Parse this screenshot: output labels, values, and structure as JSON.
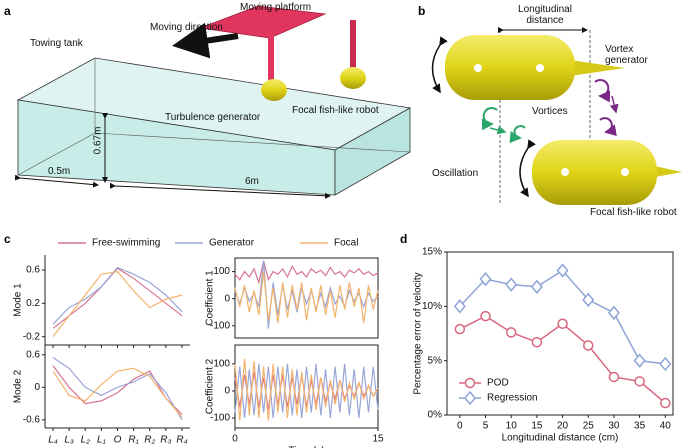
{
  "panels": {
    "a": {
      "label": "a",
      "platform": "Moving platform",
      "direction": "Moving direction",
      "tank": "Towing tank",
      "generator": "Turbulence generator",
      "robot": "Focal fish-like robot",
      "height": "0.67m",
      "width": "0.5m",
      "length": "6m"
    },
    "b": {
      "label": "b",
      "distance": "Longitudinal distance",
      "generator": "Vortex generator",
      "vortices": "Vortices",
      "oscillation": "Oscillation",
      "robot": "Focal fish-like robot"
    },
    "c": {
      "label": "c"
    },
    "d": {
      "label": "d"
    }
  },
  "chart_data": [
    {
      "type": "line",
      "ylabel": "Mode 1",
      "categories": [
        null,
        null,
        null,
        null,
        null,
        null,
        null,
        null,
        null
      ],
      "ylim": [
        -0.3,
        0.78
      ],
      "yticks": [
        -0.2,
        0.2,
        0.6
      ],
      "series": [
        {
          "name": "Free-swimming",
          "color": "#d9758f",
          "values": [
            -0.1,
            0.05,
            0.2,
            0.4,
            0.62,
            0.5,
            0.35,
            0.2,
            0.05
          ]
        },
        {
          "name": "Generator",
          "color": "#9aa6d8",
          "values": [
            -0.05,
            0.15,
            0.25,
            0.4,
            0.63,
            0.55,
            0.45,
            0.3,
            0.1
          ]
        },
        {
          "name": "Focal",
          "color": "#f4b36b",
          "values": [
            -0.2,
            0.05,
            0.3,
            0.55,
            0.58,
            0.35,
            0.15,
            0.25,
            0.3
          ]
        }
      ]
    },
    {
      "type": "line",
      "ylabel": "Coefficient 1",
      "x": [
        0,
        0.5,
        1,
        1.5,
        2,
        2.5,
        3,
        3.5,
        4,
        4.5,
        5,
        5.5,
        6,
        6.5,
        7,
        7.5,
        8,
        8.5,
        9,
        9.5,
        10,
        10.5,
        11,
        11.5,
        12,
        12.5,
        13,
        13.5,
        14,
        14.5,
        15
      ],
      "xlim": [
        0,
        15
      ],
      "ylim": [
        -145,
        150
      ],
      "yticks": [
        -100,
        0,
        100
      ],
      "series": [
        {
          "name": "Free-swimming",
          "color": "#d9758f",
          "values": [
            90,
            70,
            100,
            80,
            110,
            60,
            140,
            70,
            100,
            90,
            110,
            80,
            120,
            90,
            100,
            80,
            110,
            95,
            105,
            85,
            115,
            90,
            100,
            80,
            105,
            95,
            110,
            90,
            100,
            85,
            95
          ]
        },
        {
          "name": "Generator",
          "color": "#9aa6d8",
          "values": [
            30,
            -20,
            40,
            -10,
            20,
            -30,
            140,
            -110,
            60,
            -60,
            50,
            -40,
            30,
            -50,
            40,
            -20,
            30,
            -40,
            20,
            -30,
            40,
            -20,
            10,
            -30,
            30,
            -10,
            20,
            -30,
            20,
            -10,
            10
          ]
        },
        {
          "name": "Focal",
          "color": "#f4b36b",
          "values": [
            40,
            -30,
            50,
            -50,
            30,
            -60,
            100,
            -80,
            40,
            -90,
            60,
            -70,
            50,
            -40,
            60,
            -80,
            40,
            -50,
            50,
            -60,
            30,
            -70,
            50,
            -40,
            60,
            -30,
            40,
            -90,
            50,
            -40,
            30
          ]
        }
      ]
    },
    {
      "type": "line",
      "ylabel": "Mode 2",
      "categories": [
        "L₄",
        "L₃",
        "L₂",
        "L₁",
        "O",
        "R₁",
        "R₂",
        "R₃",
        "R₄"
      ],
      "ylim": [
        -0.75,
        0.78
      ],
      "yticks": [
        -0.6,
        0,
        0.6
      ],
      "series": [
        {
          "name": "Free-swimming",
          "color": "#d9758f",
          "values": [
            0.4,
            0.0,
            -0.3,
            -0.25,
            -0.1,
            0.15,
            0.3,
            -0.2,
            -0.5
          ]
        },
        {
          "name": "Generator",
          "color": "#9aa6d8",
          "values": [
            0.55,
            0.35,
            0.0,
            -0.15,
            0.0,
            0.1,
            0.25,
            -0.1,
            -0.6
          ]
        },
        {
          "name": "Focal",
          "color": "#f4b36b",
          "values": [
            0.3,
            -0.15,
            -0.25,
            0.05,
            0.3,
            0.35,
            0.2,
            -0.2,
            -0.55
          ]
        }
      ]
    },
    {
      "type": "line",
      "ylabel": "Coefficient 2",
      "xlabel": "Time (s)",
      "x": [
        0,
        0.5,
        1,
        1.5,
        2,
        2.5,
        3,
        3.5,
        4,
        4.5,
        5,
        5.5,
        6,
        6.5,
        7,
        7.5,
        8,
        8.5,
        9,
        9.5,
        10,
        10.5,
        11,
        11.5,
        12,
        12.5,
        13,
        13.5,
        14,
        14.5,
        15
      ],
      "xlim": [
        0,
        15
      ],
      "xticks": [
        0,
        15
      ],
      "ylim": [
        -137,
        170
      ],
      "yticks": [
        -100,
        0,
        100
      ],
      "series": [
        {
          "name": "Free-swimming",
          "color": "#d9758f",
          "values": [
            50,
            -60,
            60,
            -50,
            70,
            -60,
            50,
            -70,
            60,
            -50,
            60,
            -60,
            50,
            -50,
            60,
            -60,
            40,
            -50,
            50,
            -40,
            30,
            -30,
            40,
            -30,
            20,
            -20,
            30,
            -20,
            20,
            -20,
            10
          ]
        },
        {
          "name": "Generator",
          "color": "#9aa6d8",
          "values": [
            -80,
            90,
            -100,
            80,
            -90,
            100,
            -80,
            90,
            -100,
            90,
            -80,
            100,
            -90,
            80,
            -100,
            90,
            -80,
            100,
            -90,
            80,
            -100,
            90,
            -80,
            100,
            -90,
            80,
            -100,
            90,
            -80,
            90,
            -70
          ]
        },
        {
          "name": "Focal",
          "color": "#f4b36b",
          "values": [
            100,
            -110,
            120,
            -90,
            110,
            -100,
            90,
            -110,
            100,
            -80,
            90,
            -100,
            80,
            -90,
            70,
            -80,
            60,
            -70,
            50,
            -60,
            40,
            -50,
            40,
            -40,
            30,
            -30,
            30,
            -30,
            20,
            -20,
            10
          ]
        }
      ]
    },
    {
      "type": "line",
      "ylabel": "Percentage error of velocity",
      "xlabel": "Longitudinal distance (cm)",
      "x": [
        0,
        5,
        10,
        15,
        20,
        25,
        30,
        35,
        40
      ],
      "xlim": [
        -2.5,
        41.5
      ],
      "xticks": [
        0,
        5,
        10,
        15,
        20,
        25,
        30,
        35,
        40
      ],
      "ylim": [
        0,
        15
      ],
      "yticks": [
        {
          "value": 0,
          "label": "0%"
        },
        {
          "value": 5,
          "label": "5%"
        },
        {
          "value": 10,
          "label": "10%"
        },
        {
          "value": 15,
          "label": "15%"
        }
      ],
      "legend": "lower left",
      "series": [
        {
          "name": "POD",
          "color": "#d9667f",
          "marker": "circle",
          "values": [
            7.9,
            9.1,
            7.6,
            6.7,
            8.4,
            6.4,
            3.5,
            3.1,
            1.1
          ]
        },
        {
          "name": "Regression",
          "color": "#8fa3d8",
          "marker": "diamond",
          "values": [
            10.0,
            12.5,
            12.0,
            11.8,
            13.3,
            10.6,
            9.4,
            5.0,
            4.7
          ]
        }
      ]
    }
  ]
}
